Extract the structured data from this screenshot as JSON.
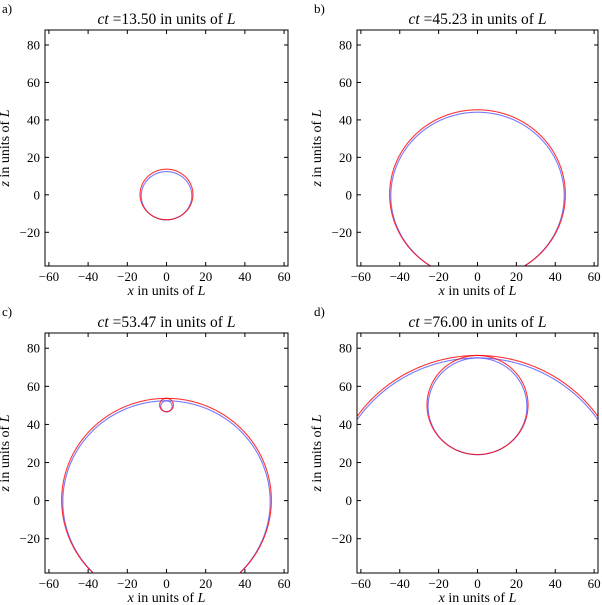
{
  "chart_data": [
    {
      "type": "line",
      "panel_label": "a)",
      "title_var": "ct",
      "title_value": "=13.50 in units of ",
      "title_unit": "L",
      "xlabel_var": "x",
      "ylabel_var": "z",
      "label_rest": " in units of ",
      "label_unit": "L",
      "xlim": [
        -62,
        62
      ],
      "ylim": [
        -38,
        88
      ],
      "xticks": [
        -60,
        -40,
        -20,
        0,
        20,
        40,
        60
      ],
      "yticks": [
        -20,
        0,
        20,
        40,
        60,
        80
      ],
      "circles": [
        {
          "cx": 0,
          "cz": 0,
          "r": 13.5
        }
      ],
      "series_colors": {
        "red": "#ff0000",
        "blue": "#4a4aff"
      }
    },
    {
      "type": "line",
      "panel_label": "b)",
      "title_var": "ct",
      "title_value": "=45.23 in units of ",
      "title_unit": "L",
      "xlabel_var": "x",
      "ylabel_var": "z",
      "label_rest": " in units of ",
      "label_unit": "L",
      "xlim": [
        -62,
        62
      ],
      "ylim": [
        -38,
        88
      ],
      "xticks": [
        -60,
        -40,
        -20,
        0,
        20,
        40,
        60
      ],
      "yticks": [
        -20,
        0,
        20,
        40,
        60,
        80
      ],
      "circles": [
        {
          "cx": 0,
          "cz": 0,
          "r": 45.2
        }
      ],
      "series_colors": {
        "red": "#ff0000",
        "blue": "#4a4aff"
      }
    },
    {
      "type": "line",
      "panel_label": "c)",
      "title_var": "ct",
      "title_value": "=53.47 in units of ",
      "title_unit": "L",
      "xlabel_var": "x",
      "ylabel_var": "z",
      "label_rest": " in units of ",
      "label_unit": "L",
      "xlim": [
        -62,
        62
      ],
      "ylim": [
        -38,
        88
      ],
      "xticks": [
        -60,
        -40,
        -20,
        0,
        20,
        40,
        60
      ],
      "yticks": [
        -20,
        0,
        20,
        40,
        60,
        80
      ],
      "circles": [
        {
          "cx": 0,
          "cz": 0,
          "r": 53.5
        },
        {
          "cx": 0,
          "cz": 50,
          "r": 3.5
        }
      ],
      "series_colors": {
        "red": "#ff0000",
        "blue": "#4a4aff"
      }
    },
    {
      "type": "line",
      "panel_label": "d)",
      "title_var": "ct",
      "title_value": "=76.00 in units of ",
      "title_unit": "L",
      "xlabel_var": "x",
      "ylabel_var": "z",
      "label_rest": " in units of ",
      "label_unit": "L",
      "xlim": [
        -62,
        62
      ],
      "ylim": [
        -38,
        88
      ],
      "xticks": [
        -60,
        -40,
        -20,
        0,
        20,
        40,
        60
      ],
      "yticks": [
        -20,
        0,
        20,
        40,
        60,
        80
      ],
      "circles": [
        {
          "cx": 0,
          "cz": 0,
          "r": 76
        },
        {
          "cx": 0,
          "cz": 50,
          "r": 26
        }
      ],
      "series_colors": {
        "red": "#ff0000",
        "blue": "#4a4aff"
      }
    }
  ]
}
